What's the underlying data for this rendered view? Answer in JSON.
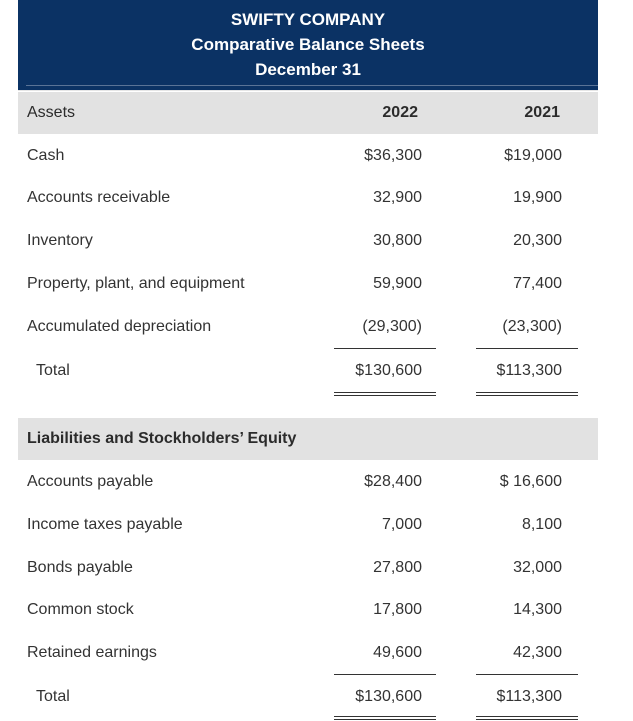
{
  "header": {
    "company": "SWIFTY COMPANY",
    "statement": "Comparative Balance Sheets",
    "date": "December 31"
  },
  "assets": {
    "heading": "Assets",
    "col_2022": "2022",
    "col_2021": "2021",
    "rows": [
      {
        "label": "Cash",
        "y2022": "$36,300",
        "y2021": "$19,000"
      },
      {
        "label": "Accounts receivable",
        "y2022": "32,900",
        "y2021": "19,900"
      },
      {
        "label": "Inventory",
        "y2022": "30,800",
        "y2021": "20,300"
      },
      {
        "label": "Property, plant, and equipment",
        "y2022": "59,900",
        "y2021": "77,400"
      },
      {
        "label": "Accumulated depreciation",
        "y2022": "(29,300)",
        "y2021": "(23,300)"
      }
    ],
    "total": {
      "label": "Total",
      "y2022": "$130,600",
      "y2021": "$113,300"
    }
  },
  "liabilities": {
    "heading": "Liabilities and Stockholders’ Equity",
    "rows": [
      {
        "label": "Accounts payable",
        "y2022": "$28,400",
        "y2021": "$ 16,600"
      },
      {
        "label": "Income taxes payable",
        "y2022": "7,000",
        "y2021": "8,100"
      },
      {
        "label": "Bonds payable",
        "y2022": "27,800",
        "y2021": "32,000"
      },
      {
        "label": "Common stock",
        "y2022": "17,800",
        "y2021": "14,300"
      },
      {
        "label": "Retained earnings",
        "y2022": "49,600",
        "y2021": "42,300"
      }
    ],
    "total": {
      "label": "Total",
      "y2022": "$130,600",
      "y2021": "$113,300"
    }
  }
}
